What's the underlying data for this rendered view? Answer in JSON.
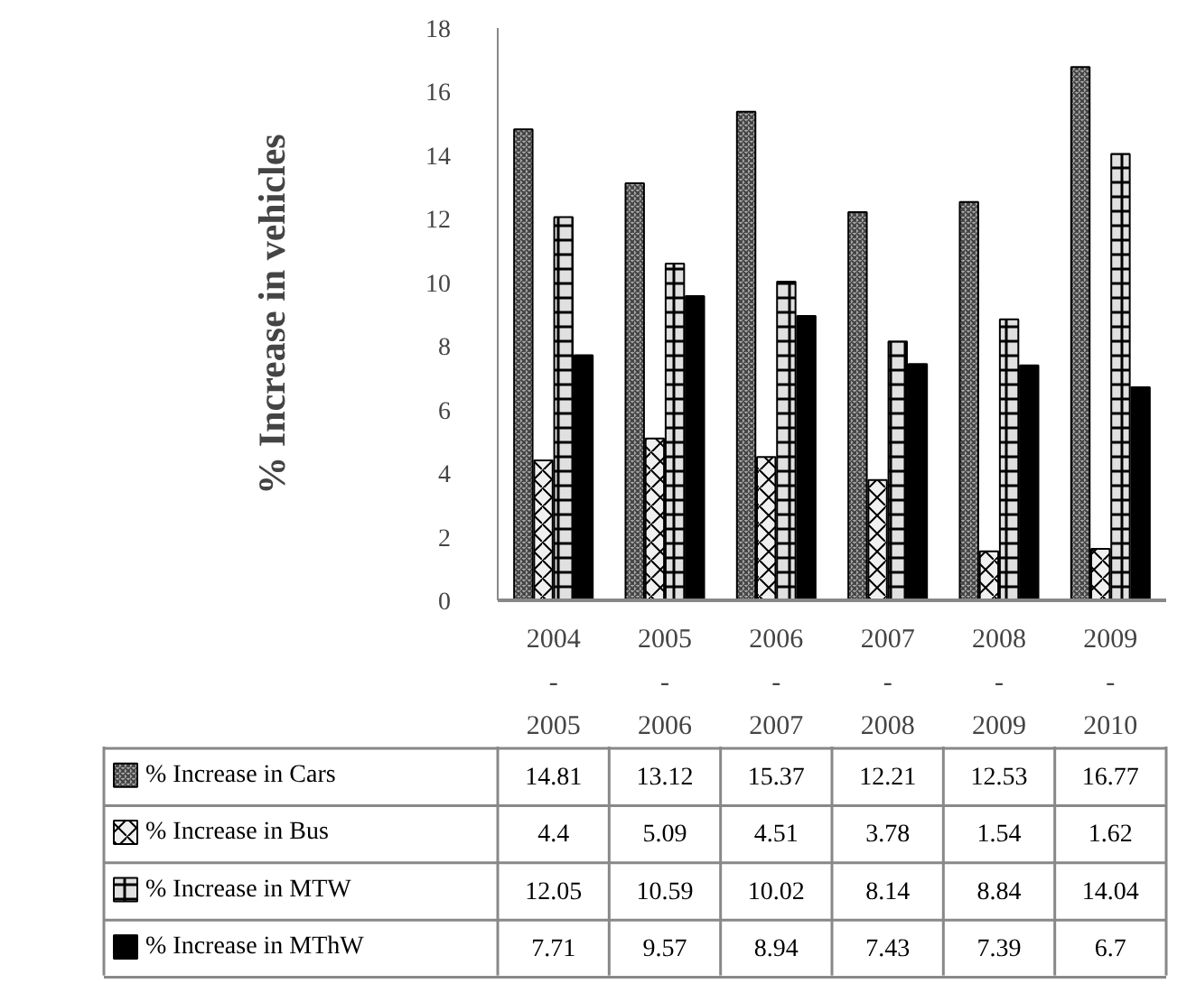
{
  "chart_data": {
    "type": "bar",
    "ylabel": "% Increase in vehicles",
    "categories": [
      "2004\n-\n2005",
      "2005\n-\n2006",
      "2006\n-\n2007",
      "2007\n-\n2008",
      "2008\n-\n2009",
      "2009\n-\n2010"
    ],
    "series": [
      {
        "name": "% Increase in Cars",
        "color": "#a6a6a6",
        "values": [
          14.81,
          13.12,
          15.37,
          12.21,
          12.53,
          16.77
        ]
      },
      {
        "name": "% Increase  in Bus",
        "color": "#f0f0f0",
        "values": [
          4.4,
          5.09,
          4.51,
          3.78,
          1.54,
          1.62
        ]
      },
      {
        "name": "% Increase in MTW",
        "color": "#e0e0e0",
        "values": [
          12.05,
          10.59,
          10.02,
          8.14,
          8.84,
          14.04
        ]
      },
      {
        "name": "% Increase in MThW",
        "color": "#000000",
        "values": [
          7.71,
          9.57,
          8.94,
          7.43,
          7.39,
          6.7
        ]
      }
    ],
    "ylim": [
      0,
      18
    ],
    "yticks": [
      0,
      2,
      4,
      6,
      8,
      10,
      12,
      14,
      16,
      18
    ],
    "data_labels": true,
    "legend": "bottom"
  }
}
